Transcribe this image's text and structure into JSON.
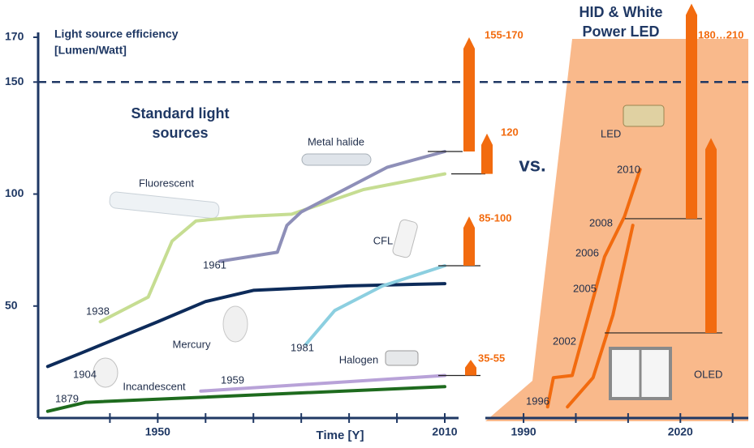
{
  "chart_data": [
    {
      "type": "line",
      "title_lines": [
        "Standard light",
        "sources"
      ],
      "y_axis_label_lines": [
        "Light source efficiency",
        "[Lumen/Watt]"
      ],
      "x_axis_label": "Time  [Y]",
      "xlim": [
        1925,
        2010
      ],
      "ylim": [
        0,
        170
      ],
      "xticks": [
        {
          "value": 1940,
          "label": null
        },
        1950,
        {
          "value": 1960,
          "label": null
        },
        {
          "value": 1970,
          "label": null
        },
        {
          "value": 1980,
          "label": null
        },
        {
          "value": 1990,
          "label": null
        },
        {
          "value": 2000,
          "label": null
        },
        2010
      ],
      "yticks": [
        50,
        100,
        150,
        170
      ],
      "reference_line": 150,
      "series": [
        {
          "name": "Incandescent",
          "color": "#1e6b1e",
          "x": [
            1927,
            1935,
            2010
          ],
          "values": [
            3,
            7,
            14
          ]
        },
        {
          "name": "Halogen",
          "color": "#b8a2d8",
          "x": [
            1959,
            2010
          ],
          "values": [
            12,
            19
          ]
        },
        {
          "name": "Mercury",
          "color": "#0d2b5a",
          "x": [
            1927,
            1934,
            1950,
            1960,
            1970,
            1990,
            2010
          ],
          "values": [
            23,
            29,
            43,
            52,
            57,
            59,
            60
          ]
        },
        {
          "name": "Fluorescent",
          "color": "#c6dd92",
          "x": [
            1938,
            1948,
            1953,
            1958,
            1968,
            1978,
            1993,
            2010
          ],
          "values": [
            43,
            54,
            79,
            88,
            90,
            91,
            102,
            109
          ]
        },
        {
          "name": "Metal halide",
          "color": "#8e8fb8",
          "x": [
            1963,
            1975,
            1977,
            1980,
            1998,
            2010
          ],
          "values": [
            70,
            74,
            86,
            92,
            112,
            119
          ]
        },
        {
          "name": "CFL",
          "color": "#8ccfe0",
          "x": [
            1981,
            1987,
            1997,
            2010
          ],
          "values": [
            33,
            48,
            59,
            68
          ]
        }
      ],
      "arrow_color": "#f26b0f",
      "arrows": [
        {
          "label": "155-170",
          "from": 119,
          "to": 170
        },
        {
          "label": "120",
          "from": 109,
          "to": 127
        },
        {
          "label": "85-100",
          "from": 68,
          "to": 90
        },
        {
          "label": "35-55",
          "from": 19,
          "to": 26
        }
      ],
      "annotations": [
        "1879",
        "1904",
        "1938",
        "1959",
        "1961",
        "1981"
      ]
    },
    {
      "type": "line",
      "title_lines": [
        "HID & White",
        "Power LED"
      ],
      "separator": "vs.",
      "xlim": [
        1983,
        2033
      ],
      "ylim": [
        0,
        170
      ],
      "xticks": [
        1990,
        {
          "value": 2000,
          "label": null
        },
        {
          "value": 2010,
          "label": null
        },
        2020,
        {
          "value": 2030,
          "label": null
        }
      ],
      "series": [
        {
          "color": "#f26b0f",
          "x": [
            1994.6,
            1995.7,
            1999.3,
            2005.5,
            2009.3,
            2012.3
          ],
          "values": [
            5,
            18,
            19,
            72,
            90,
            111
          ]
        },
        {
          "color": "#f26b0f",
          "x": [
            1998.4,
            2003.3,
            2007.1,
            2010.9
          ],
          "values": [
            5,
            18,
            46,
            86
          ]
        }
      ],
      "arrow_color": "#f26b0f",
      "arrows": [
        {
          "label": "180…210",
          "from": 89,
          "to": 185
        },
        {
          "from": 38,
          "to": 125
        }
      ],
      "annotations": [
        "1996",
        "2002",
        "2005",
        "2006",
        "2008",
        "2010",
        "LED",
        "OLED"
      ]
    }
  ]
}
